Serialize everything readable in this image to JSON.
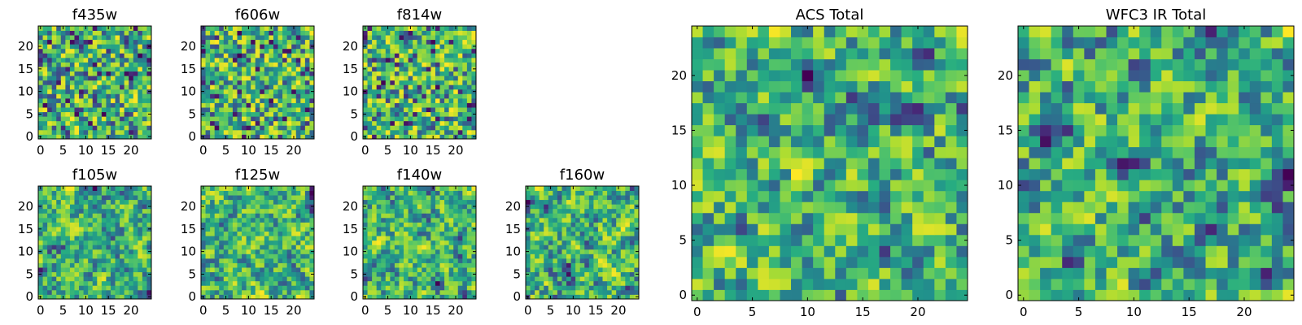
{
  "figure": {
    "description_free": true
  },
  "chart_data": [
    {
      "type": "heatmap",
      "title": "f435w",
      "grid_size": [
        25,
        25
      ],
      "xlim": [
        0,
        24
      ],
      "ylim": [
        0,
        24
      ],
      "xticks": [
        "0",
        "5",
        "10",
        "15",
        "20"
      ],
      "yticks": [
        "0",
        "5",
        "10",
        "15",
        "20"
      ],
      "colormap": "viridis",
      "vmin": 0,
      "vmax": 1,
      "seed": 11
    },
    {
      "type": "heatmap",
      "title": "f606w",
      "grid_size": [
        25,
        25
      ],
      "xlim": [
        0,
        24
      ],
      "ylim": [
        0,
        24
      ],
      "xticks": [
        "0",
        "5",
        "10",
        "15",
        "20"
      ],
      "yticks": [
        "0",
        "5",
        "10",
        "15",
        "20"
      ],
      "colormap": "viridis",
      "vmin": 0,
      "vmax": 1,
      "seed": 23
    },
    {
      "type": "heatmap",
      "title": "f814w",
      "grid_size": [
        25,
        25
      ],
      "xlim": [
        0,
        24
      ],
      "ylim": [
        0,
        24
      ],
      "xticks": [
        "0",
        "5",
        "10",
        "15",
        "20"
      ],
      "yticks": [
        "0",
        "5",
        "10",
        "15",
        "20"
      ],
      "colormap": "viridis",
      "vmin": 0,
      "vmax": 1,
      "seed": 37
    },
    {
      "type": "heatmap",
      "title": "f105w",
      "grid_size": [
        25,
        25
      ],
      "xlim": [
        0,
        24
      ],
      "ylim": [
        0,
        24
      ],
      "xticks": [
        "0",
        "5",
        "10",
        "15",
        "20"
      ],
      "yticks": [
        "0",
        "5",
        "10",
        "15",
        "20"
      ],
      "colormap": "viridis",
      "vmin": 0,
      "vmax": 1,
      "seed": 41
    },
    {
      "type": "heatmap",
      "title": "f125w",
      "grid_size": [
        25,
        25
      ],
      "xlim": [
        0,
        24
      ],
      "ylim": [
        0,
        24
      ],
      "xticks": [
        "0",
        "5",
        "10",
        "15",
        "20"
      ],
      "yticks": [
        "0",
        "5",
        "10",
        "15",
        "20"
      ],
      "colormap": "viridis",
      "vmin": 0,
      "vmax": 1,
      "seed": 53
    },
    {
      "type": "heatmap",
      "title": "f140w",
      "grid_size": [
        25,
        25
      ],
      "xlim": [
        0,
        24
      ],
      "ylim": [
        0,
        24
      ],
      "xticks": [
        "0",
        "5",
        "10",
        "15",
        "20"
      ],
      "yticks": [
        "0",
        "5",
        "10",
        "15",
        "20"
      ],
      "colormap": "viridis",
      "vmin": 0,
      "vmax": 1,
      "seed": 67
    },
    {
      "type": "heatmap",
      "title": "f160w",
      "grid_size": [
        25,
        25
      ],
      "xlim": [
        0,
        24
      ],
      "ylim": [
        0,
        24
      ],
      "xticks": [
        "0",
        "5",
        "10",
        "15",
        "20"
      ],
      "yticks": [
        "0",
        "5",
        "10",
        "15",
        "20"
      ],
      "colormap": "viridis",
      "vmin": 0,
      "vmax": 1,
      "seed": 79
    },
    {
      "type": "heatmap",
      "title": "ACS Total",
      "grid_size": [
        25,
        25
      ],
      "xlim": [
        0,
        24
      ],
      "ylim": [
        0,
        24
      ],
      "xticks": [
        "0",
        "5",
        "10",
        "15",
        "20"
      ],
      "yticks": [
        "0",
        "5",
        "10",
        "15",
        "20"
      ],
      "colormap": "viridis",
      "vmin": 0,
      "vmax": 1,
      "seed": 97
    },
    {
      "type": "heatmap",
      "title": "WFC3 IR Total",
      "grid_size": [
        25,
        25
      ],
      "xlim": [
        0,
        24
      ],
      "ylim": [
        0,
        24
      ],
      "xticks": [
        "0",
        "5",
        "10",
        "15",
        "20"
      ],
      "yticks": [
        "0",
        "5",
        "10",
        "15",
        "20"
      ],
      "colormap": "viridis",
      "vmin": 0,
      "vmax": 1,
      "seed": 113
    }
  ]
}
